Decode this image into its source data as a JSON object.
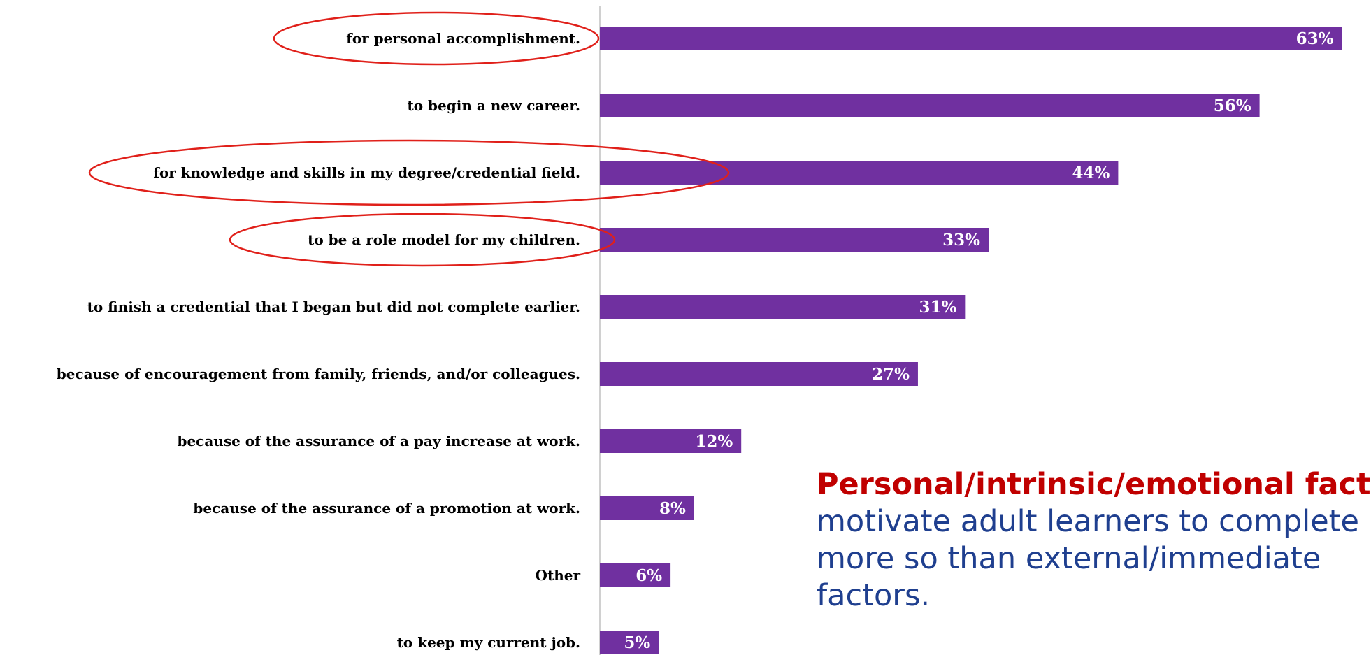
{
  "chart_data": {
    "type": "bar",
    "orientation": "horizontal",
    "categories": [
      "for personal accomplishment.",
      "to begin a new career.",
      "for knowledge and skills in my degree/credential field.",
      "to be a role model for my children.",
      "to finish a credential that I began but did not complete earlier.",
      "because of encouragement from family, friends, and/or colleagues.",
      "because of the assurance of a pay increase at work.",
      "because of the assurance of a promotion at work.",
      "Other",
      "to keep my current job."
    ],
    "values": [
      63,
      56,
      44,
      33,
      31,
      27,
      12,
      8,
      6,
      5
    ],
    "value_labels": [
      "63%",
      "56%",
      "44%",
      "33%",
      "31%",
      "27%",
      "12%",
      "8%",
      "6%",
      "5%"
    ],
    "unit": "%",
    "xlim": [
      0,
      65
    ],
    "highlighted_categories": [
      0,
      2,
      3
    ],
    "bar_color": "#7030a0",
    "highlight_ellipse_color": "#e0201a",
    "grid": false,
    "legend": "none"
  },
  "callout": {
    "highlight": "Personal/intrinsic/emotional factors",
    "line1_rest": "",
    "line2": "motivate adult learners to complete",
    "line3": "more so than external/immediate",
    "line4": "factors.",
    "highlight_color": "#c00000",
    "text_color": "#1f3f8f"
  }
}
